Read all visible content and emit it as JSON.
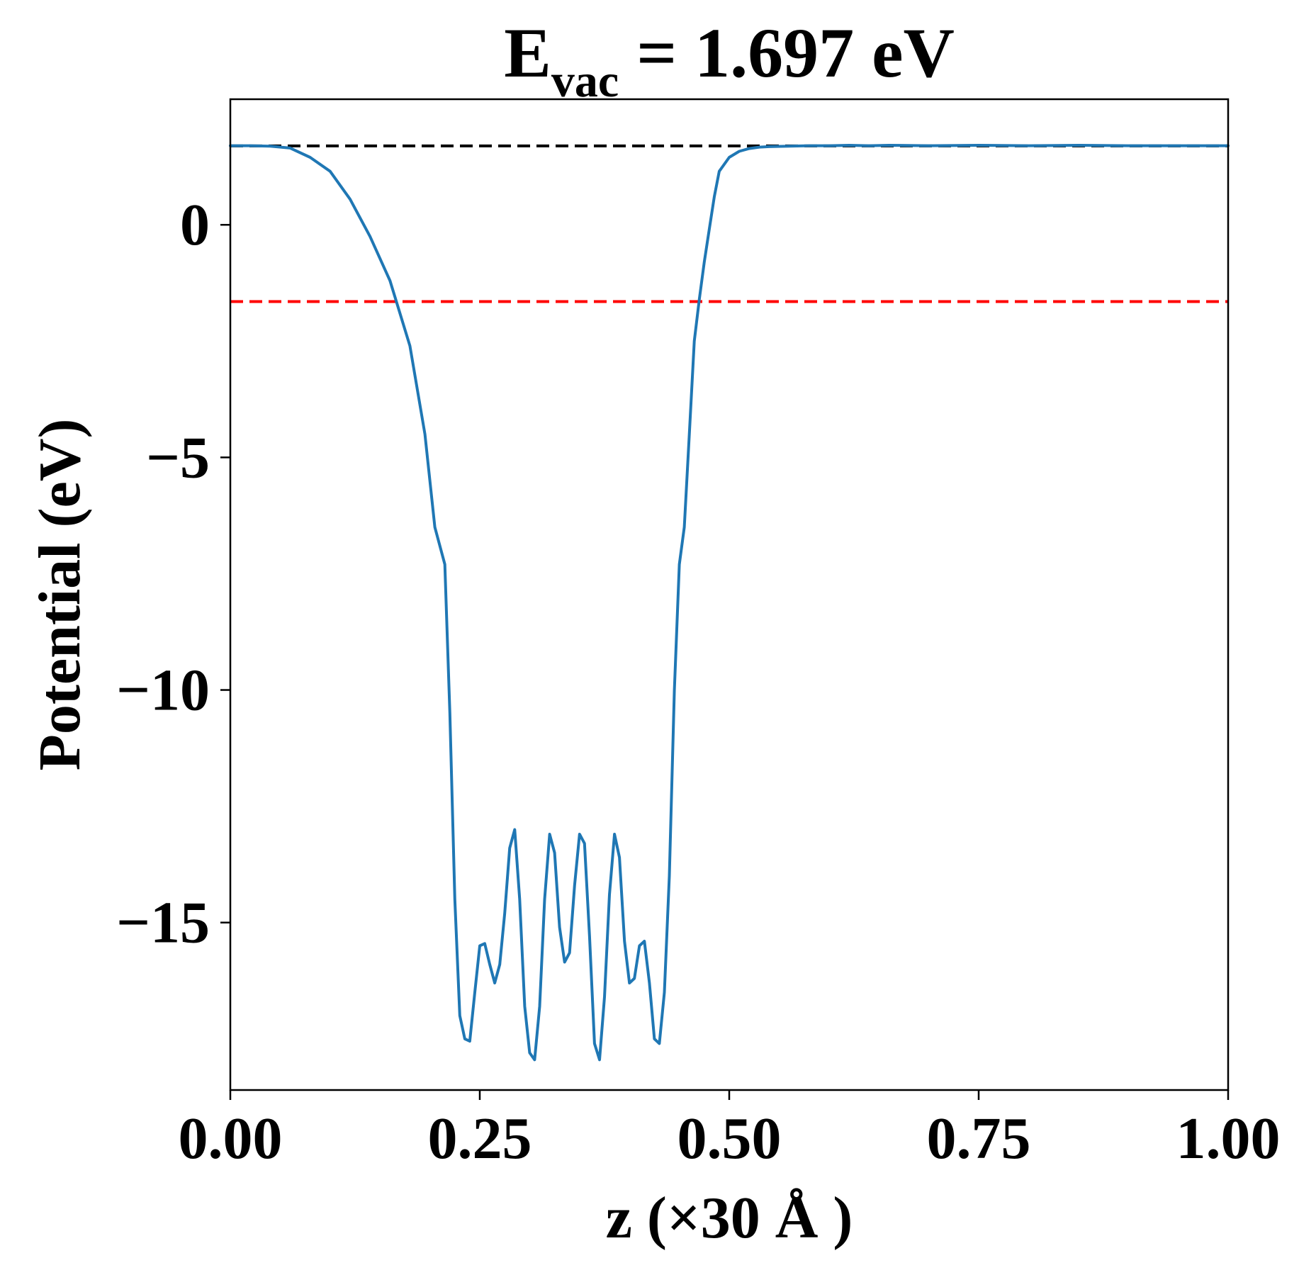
{
  "chart_data": {
    "type": "line",
    "title": {
      "main": "E",
      "subscript": "vac",
      "rest": " = 1.697 eV"
    },
    "xlabel": "z (×30 Å )",
    "ylabel": "Potential (eV)",
    "xlim": [
      0.0,
      1.0
    ],
    "ylim": [
      -18.6,
      2.7
    ],
    "xticks": [
      {
        "value": 0.0,
        "label": "0.00"
      },
      {
        "value": 0.25,
        "label": "0.25"
      },
      {
        "value": 0.5,
        "label": "0.50"
      },
      {
        "value": 0.75,
        "label": "0.75"
      },
      {
        "value": 1.0,
        "label": "1.00"
      }
    ],
    "yticks": [
      {
        "value": 0,
        "label": "0"
      },
      {
        "value": -5,
        "label": "−5"
      },
      {
        "value": -10,
        "label": "−10"
      },
      {
        "value": -15,
        "label": "−15"
      }
    ],
    "grid": false,
    "legend": "none",
    "reference_lines": [
      {
        "name": "vacuum-level",
        "y": 1.697,
        "color": "#000000",
        "style": "dashed"
      },
      {
        "name": "fermi-level",
        "y": -1.65,
        "color": "#ff0000",
        "style": "dashed"
      }
    ],
    "series": [
      {
        "name": "planar-averaged-potential",
        "color": "#1f77b4",
        "x": [
          0.0,
          0.02,
          0.04,
          0.06,
          0.08,
          0.1,
          0.12,
          0.14,
          0.16,
          0.18,
          0.195,
          0.205,
          0.215,
          0.22,
          0.225,
          0.23,
          0.235,
          0.24,
          0.245,
          0.25,
          0.255,
          0.26,
          0.265,
          0.27,
          0.275,
          0.28,
          0.285,
          0.29,
          0.295,
          0.3,
          0.305,
          0.31,
          0.315,
          0.32,
          0.325,
          0.33,
          0.335,
          0.34,
          0.345,
          0.35,
          0.355,
          0.36,
          0.365,
          0.37,
          0.375,
          0.38,
          0.385,
          0.39,
          0.395,
          0.4,
          0.405,
          0.41,
          0.415,
          0.42,
          0.425,
          0.43,
          0.435,
          0.44,
          0.445,
          0.45,
          0.455,
          0.46,
          0.465,
          0.47,
          0.475,
          0.48,
          0.485,
          0.49,
          0.5,
          0.51,
          0.52,
          0.53,
          0.54,
          0.56,
          0.58,
          0.6,
          0.62,
          0.64,
          0.66,
          0.7,
          0.75,
          0.8,
          0.85,
          0.9,
          0.95,
          1.0
        ],
        "y": [
          1.7,
          1.7,
          1.69,
          1.65,
          1.45,
          1.15,
          0.55,
          -0.25,
          -1.2,
          -2.6,
          -4.5,
          -6.5,
          -7.3,
          -10.5,
          -14.5,
          -17.0,
          -17.5,
          -17.55,
          -16.5,
          -15.5,
          -15.45,
          -15.9,
          -16.3,
          -15.9,
          -14.8,
          -13.4,
          -13.0,
          -14.5,
          -16.8,
          -17.8,
          -17.95,
          -16.8,
          -14.5,
          -13.1,
          -13.5,
          -15.1,
          -15.85,
          -15.65,
          -14.2,
          -13.1,
          -13.3,
          -15.3,
          -17.6,
          -17.95,
          -16.6,
          -14.4,
          -13.1,
          -13.6,
          -15.4,
          -16.3,
          -16.2,
          -15.5,
          -15.4,
          -16.3,
          -17.5,
          -17.6,
          -16.5,
          -14.0,
          -10.0,
          -7.3,
          -6.5,
          -4.5,
          -2.5,
          -1.6,
          -0.8,
          -0.1,
          0.6,
          1.15,
          1.45,
          1.58,
          1.64,
          1.67,
          1.68,
          1.69,
          1.7,
          1.7,
          1.71,
          1.7,
          1.71,
          1.7,
          1.71,
          1.7,
          1.71,
          1.7,
          1.7,
          1.7
        ]
      }
    ]
  }
}
